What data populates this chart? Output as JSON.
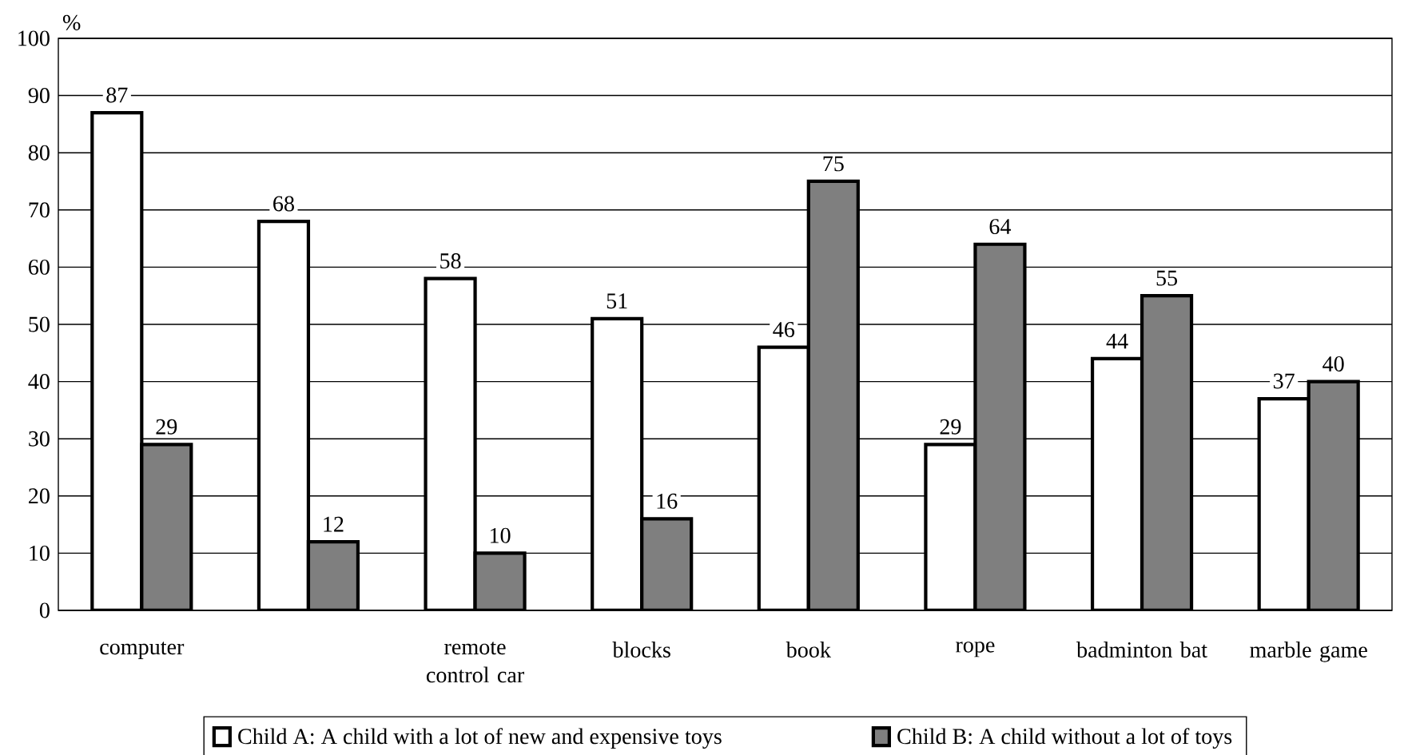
{
  "chart_data": {
    "type": "bar",
    "ylabel": "%",
    "categories": [
      "computer",
      null,
      "remote control car",
      "blocks",
      "book",
      "rope",
      "badminton bat",
      "marble game"
    ],
    "series": [
      {
        "name": "Child A: A child with a lot of new and expensive toys",
        "color": "#ffffff",
        "values": [
          87,
          68,
          58,
          51,
          46,
          29,
          44,
          37
        ]
      },
      {
        "name": "Child B: A child without a lot of toys",
        "color": "#7f7f7f",
        "values": [
          29,
          12,
          10,
          16,
          75,
          64,
          55,
          40
        ]
      }
    ],
    "ylim": [
      0,
      100
    ],
    "yticks": [
      0,
      10,
      20,
      30,
      40,
      50,
      60,
      70,
      80,
      90,
      100
    ],
    "grid": "y",
    "legend": "bottom",
    "data_labels": true
  }
}
